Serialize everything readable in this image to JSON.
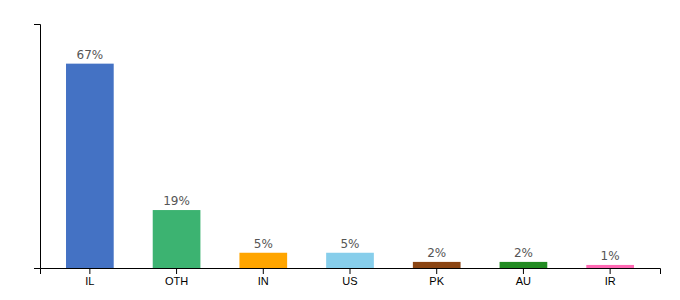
{
  "chart_data": {
    "type": "bar",
    "categories": [
      "IL",
      "OTH",
      "IN",
      "US",
      "PK",
      "AU",
      "IR"
    ],
    "values": [
      67,
      19,
      5,
      5,
      2,
      2,
      1
    ],
    "value_labels": [
      "67%",
      "19%",
      "5%",
      "5%",
      "2%",
      "2%",
      "1%"
    ],
    "colors": [
      "#4472C4",
      "#3CB371",
      "#FFA500",
      "#87CEEB",
      "#8B4513",
      "#228B22",
      "#FF69B4"
    ],
    "ylim": [
      0,
      80
    ],
    "data_labels": true,
    "tick_labels": "x"
  }
}
